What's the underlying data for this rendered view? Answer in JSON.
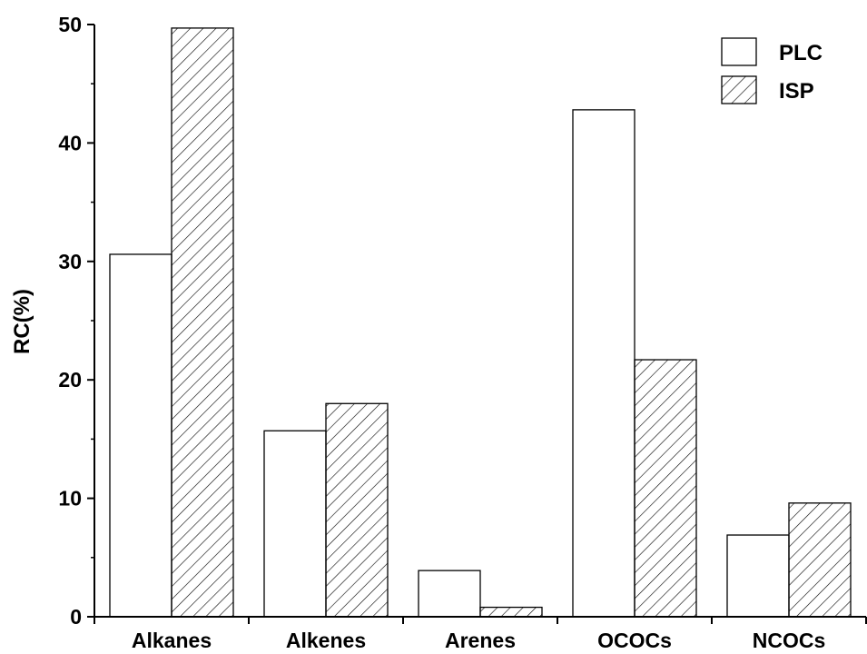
{
  "chart_data": {
    "type": "bar",
    "categories": [
      "Alkanes",
      "Alkenes",
      "Arenes",
      "OCOCs",
      "NCOCs"
    ],
    "series": [
      {
        "name": "PLC",
        "values": [
          30.6,
          15.7,
          3.9,
          42.8,
          6.9
        ],
        "fill": "none"
      },
      {
        "name": "ISP",
        "values": [
          49.7,
          18.0,
          0.8,
          21.7,
          9.6
        ],
        "fill": "hatch"
      }
    ],
    "ylabel": "RC(%)",
    "xlabel": "",
    "ylim": [
      0,
      50
    ],
    "yticks": [
      0,
      10,
      20,
      30,
      40,
      50
    ],
    "grid": false,
    "legend": "top-right"
  },
  "colors": {
    "stroke": "#000000",
    "background": "#ffffff"
  }
}
